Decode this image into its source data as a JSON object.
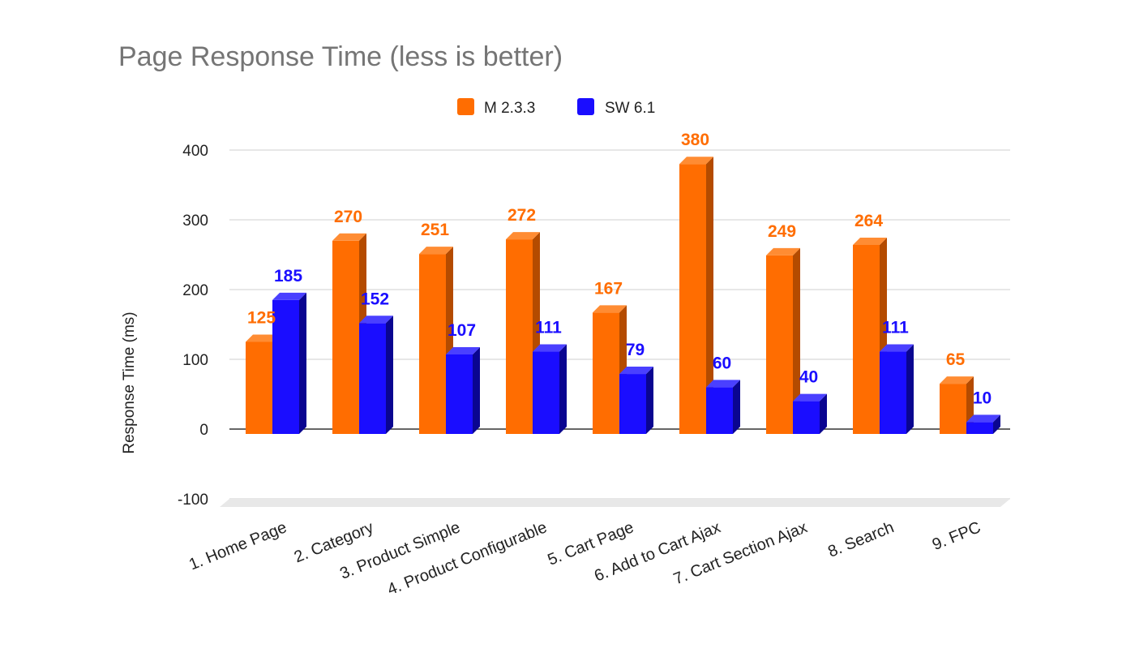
{
  "chart_data": {
    "type": "bar",
    "title": "Page Response Time (less is better)",
    "ylabel": "Response Time (ms)",
    "xlabel": "",
    "ylim": [
      -100,
      400
    ],
    "yticks": [
      "400",
      "300",
      "200",
      "100",
      "0",
      "-100"
    ],
    "grid": true,
    "legend_position": "top",
    "style": "3d",
    "categories": [
      "1. Home Page",
      "2. Category",
      "3. Product Simple",
      "4. Product Configurable",
      "5. Cart Page",
      "6. Add to Cart Ajax",
      "7. Cart Section Ajax",
      "8. Search",
      "9. FPC"
    ],
    "series": [
      {
        "name": "M 2.3.3",
        "color": "#ff6d01",
        "values": [
          125,
          270,
          251,
          272,
          167,
          380,
          249,
          264,
          65
        ]
      },
      {
        "name": "SW 6.1",
        "color": "#1a0dff",
        "values": [
          185,
          152,
          107,
          111,
          79,
          60,
          40,
          111,
          10
        ]
      }
    ]
  }
}
